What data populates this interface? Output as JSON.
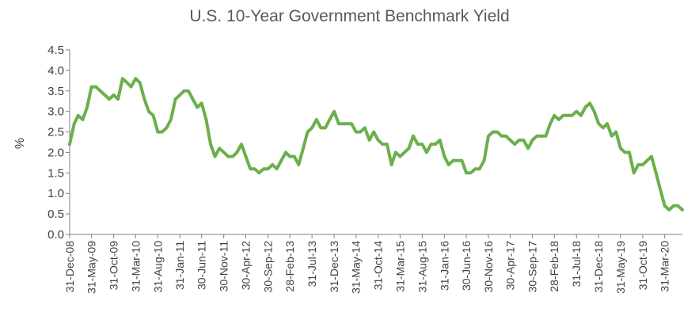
{
  "chart_data": {
    "type": "line",
    "title": "U.S. 10-Year Government Benchmark Yield",
    "xlabel": "",
    "ylabel": "%",
    "ylim": [
      0,
      4.5
    ],
    "yticks": [
      "0.0",
      "0.5",
      "1.0",
      "1.5",
      "2.0",
      "2.5",
      "3.0",
      "3.5",
      "4.0",
      "4.5"
    ],
    "xrange": [
      "2008-12-31",
      "2020-07-31"
    ],
    "xticks": [
      "31-Dec-08",
      "31-May-09",
      "31-Oct-09",
      "31-Mar-10",
      "31-Aug-10",
      "31-Jan-11",
      "30-Jun-11",
      "30-Nov-11",
      "30-Apr-12",
      "30-Sep-12",
      "28-Feb-13",
      "31-Jul-13",
      "31-Dec-13",
      "31-May-14",
      "31-Oct-14",
      "31-Mar-15",
      "31-Aug-15",
      "31-Jan-16",
      "30-Jun-16",
      "30-Nov-16",
      "30-Apr-17",
      "30-Sep-17",
      "28-Feb-18",
      "31-Jul-18",
      "31-Dec-18",
      "31-May-19",
      "31-Oct-19",
      "31-Mar-20"
    ],
    "grid": false,
    "legend": "none",
    "color": "#6ab04c",
    "series": [
      {
        "x": [
          "2008-12-31",
          "2009-01-31",
          "2009-02-28",
          "2009-03-31",
          "2009-04-30",
          "2009-05-31",
          "2009-06-30",
          "2009-07-31",
          "2009-08-31",
          "2009-09-30",
          "2009-10-31",
          "2009-11-30",
          "2009-12-31",
          "2010-01-31",
          "2010-02-28",
          "2010-03-31",
          "2010-04-30",
          "2010-05-31",
          "2010-06-30",
          "2010-07-31",
          "2010-08-31",
          "2010-09-30",
          "2010-10-31",
          "2010-11-30",
          "2010-12-31",
          "2011-01-31",
          "2011-02-28",
          "2011-03-31",
          "2011-04-30",
          "2011-05-31",
          "2011-06-30",
          "2011-07-31",
          "2011-08-31",
          "2011-09-30",
          "2011-10-31",
          "2011-11-30",
          "2011-12-31",
          "2012-01-31",
          "2012-02-29",
          "2012-03-31",
          "2012-04-30",
          "2012-05-31",
          "2012-06-30",
          "2012-07-31",
          "2012-08-31",
          "2012-09-30",
          "2012-10-31",
          "2012-11-30",
          "2012-12-31",
          "2013-01-31",
          "2013-02-28",
          "2013-03-31",
          "2013-04-30",
          "2013-05-31",
          "2013-06-30",
          "2013-07-31",
          "2013-08-31",
          "2013-09-30",
          "2013-10-31",
          "2013-11-30",
          "2013-12-31",
          "2014-01-31",
          "2014-02-28",
          "2014-03-31",
          "2014-04-30",
          "2014-05-31",
          "2014-06-30",
          "2014-07-31",
          "2014-08-31",
          "2014-09-30",
          "2014-10-31",
          "2014-11-30",
          "2014-12-31",
          "2015-01-31",
          "2015-02-28",
          "2015-03-31",
          "2015-04-30",
          "2015-05-31",
          "2015-06-30",
          "2015-07-31",
          "2015-08-31",
          "2015-09-30",
          "2015-10-31",
          "2015-11-30",
          "2015-12-31",
          "2016-01-31",
          "2016-02-29",
          "2016-03-31",
          "2016-04-30",
          "2016-05-31",
          "2016-06-30",
          "2016-07-31",
          "2016-08-31",
          "2016-09-30",
          "2016-10-31",
          "2016-11-30",
          "2016-12-31",
          "2017-01-31",
          "2017-02-28",
          "2017-03-31",
          "2017-04-30",
          "2017-05-31",
          "2017-06-30",
          "2017-07-31",
          "2017-08-31",
          "2017-09-30",
          "2017-10-31",
          "2017-11-30",
          "2017-12-31",
          "2018-01-31",
          "2018-02-28",
          "2018-03-31",
          "2018-04-30",
          "2018-05-31",
          "2018-06-30",
          "2018-07-31",
          "2018-08-31",
          "2018-09-30",
          "2018-10-31",
          "2018-11-30",
          "2018-12-31",
          "2019-01-31",
          "2019-02-28",
          "2019-03-31",
          "2019-04-30",
          "2019-05-31",
          "2019-06-30",
          "2019-07-31",
          "2019-08-31",
          "2019-09-30",
          "2019-10-31",
          "2019-11-30",
          "2019-12-31",
          "2020-01-31",
          "2020-02-29",
          "2020-03-31",
          "2020-04-30",
          "2020-05-31",
          "2020-06-30",
          "2020-07-31"
        ],
        "y": [
          2.2,
          2.7,
          2.9,
          2.8,
          3.1,
          3.6,
          3.6,
          3.5,
          3.4,
          3.3,
          3.4,
          3.3,
          3.8,
          3.7,
          3.6,
          3.8,
          3.7,
          3.3,
          3.0,
          2.9,
          2.5,
          2.5,
          2.6,
          2.8,
          3.3,
          3.4,
          3.5,
          3.5,
          3.3,
          3.1,
          3.2,
          2.8,
          2.2,
          1.9,
          2.1,
          2.0,
          1.9,
          1.9,
          2.0,
          2.2,
          1.9,
          1.6,
          1.6,
          1.5,
          1.6,
          1.6,
          1.7,
          1.6,
          1.8,
          2.0,
          1.9,
          1.9,
          1.7,
          2.1,
          2.5,
          2.6,
          2.8,
          2.6,
          2.6,
          2.8,
          3.0,
          2.7,
          2.7,
          2.7,
          2.7,
          2.5,
          2.5,
          2.6,
          2.3,
          2.5,
          2.3,
          2.2,
          2.2,
          1.7,
          2.0,
          1.9,
          2.0,
          2.1,
          2.4,
          2.2,
          2.2,
          2.0,
          2.2,
          2.2,
          2.3,
          1.9,
          1.7,
          1.8,
          1.8,
          1.8,
          1.5,
          1.5,
          1.6,
          1.6,
          1.8,
          2.4,
          2.5,
          2.5,
          2.4,
          2.4,
          2.3,
          2.2,
          2.3,
          2.3,
          2.1,
          2.3,
          2.4,
          2.4,
          2.4,
          2.7,
          2.9,
          2.8,
          2.9,
          2.9,
          2.9,
          3.0,
          2.9,
          3.1,
          3.2,
          3.0,
          2.7,
          2.6,
          2.7,
          2.4,
          2.5,
          2.1,
          2.0,
          2.0,
          1.5,
          1.7,
          1.7,
          1.8,
          1.9,
          1.5,
          1.1,
          0.7,
          0.6,
          0.7,
          0.7,
          0.6
        ]
      }
    ]
  }
}
